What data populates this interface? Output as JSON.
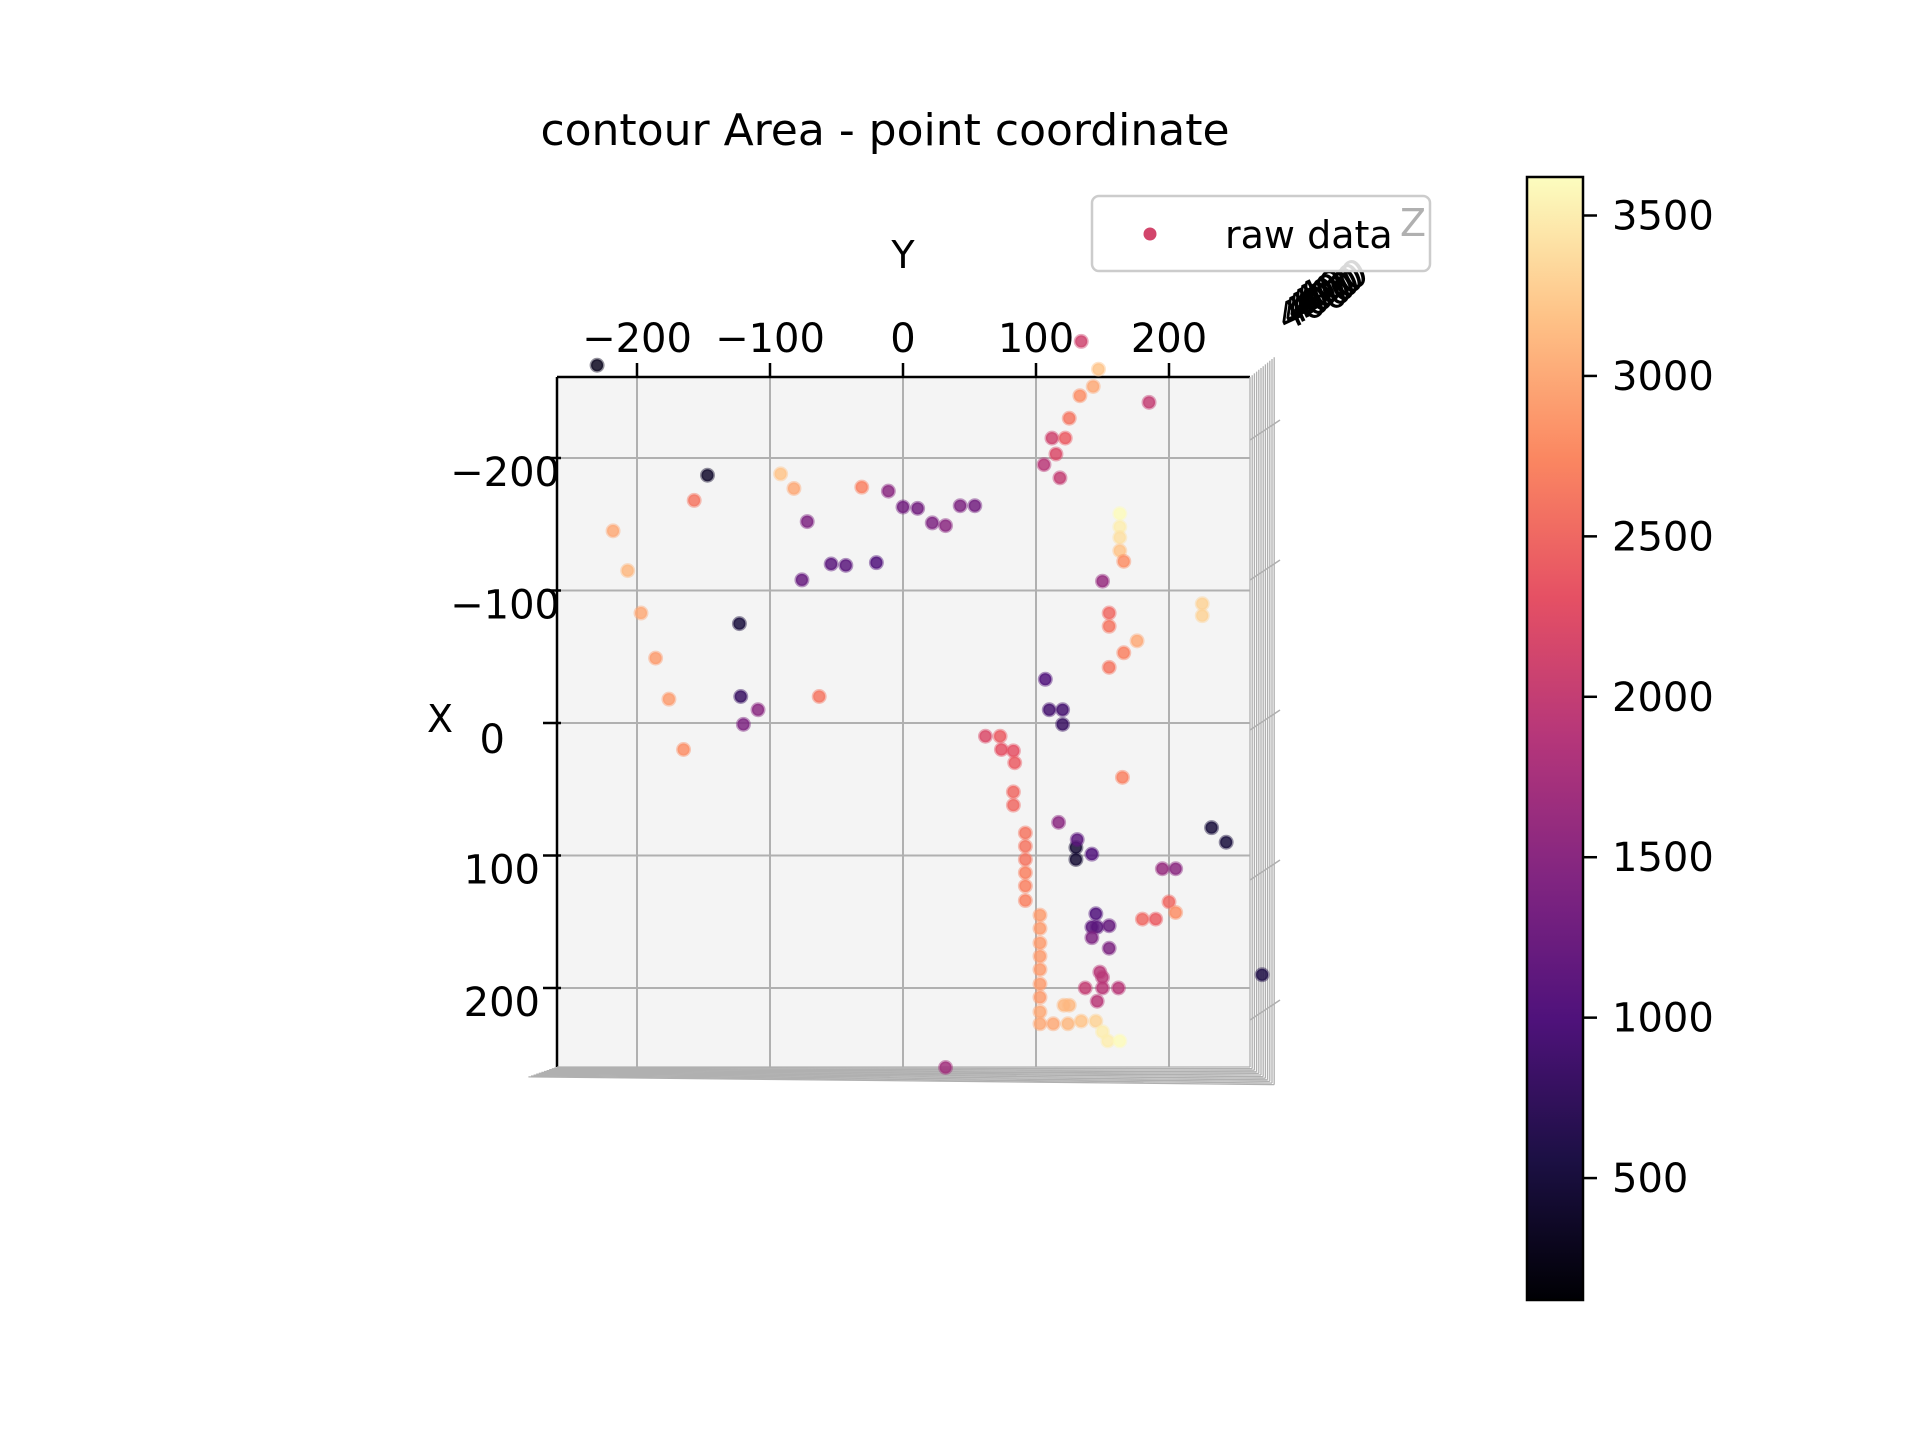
{
  "chart_data": {
    "type": "scatter",
    "title": "contour Area - point coordinate",
    "xlabel": "Y",
    "ylabel": "X",
    "zlabel": "Z",
    "view": "top-down 3D scatter",
    "grid": true,
    "legend": {
      "placement": "top-right",
      "entries": [
        "raw data"
      ]
    },
    "y_ticks_top": [
      -200,
      -100,
      0,
      100,
      200
    ],
    "x_ticks_left": [
      -200,
      -100,
      0,
      100,
      200
    ],
    "horizontal_range": [
      -260,
      260
    ],
    "vertical_range": [
      -260,
      260
    ],
    "z_tick_text": "400",
    "colorbar": {
      "colormap": "magma",
      "range": [
        120,
        3620
      ],
      "ticks": [
        500,
        1000,
        1500,
        2000,
        2500,
        3000,
        3500
      ]
    },
    "series": [
      {
        "name": "raw data",
        "points": [
          [
            -230,
            -270,
            300
          ],
          [
            -147,
            -187,
            400
          ],
          [
            -123,
            -75,
            500
          ],
          [
            130,
            94,
            450
          ],
          [
            130,
            103,
            450
          ],
          [
            232,
            79,
            480
          ],
          [
            243,
            90,
            500
          ],
          [
            270,
            190,
            600
          ],
          [
            134,
            -288,
            2100
          ],
          [
            185,
            -242,
            2000
          ],
          [
            -218,
            -145,
            3000
          ],
          [
            -207,
            -115,
            3100
          ],
          [
            -197,
            -83,
            3000
          ],
          [
            -186,
            -49,
            2900
          ],
          [
            -176,
            -18,
            2900
          ],
          [
            -165,
            20,
            2800
          ],
          [
            -157,
            -168,
            2600
          ],
          [
            -92,
            -188,
            3200
          ],
          [
            -82,
            -177,
            3000
          ],
          [
            -72,
            -152,
            1400
          ],
          [
            -76,
            -108,
            1200
          ],
          [
            -54,
            -120,
            1100
          ],
          [
            -43,
            -119,
            1100
          ],
          [
            -20,
            -121,
            1000
          ],
          [
            -31,
            -178,
            2700
          ],
          [
            -11,
            -175,
            1500
          ],
          [
            0,
            -163,
            1300
          ],
          [
            11,
            -162,
            1300
          ],
          [
            22,
            -151,
            1400
          ],
          [
            32,
            -149,
            1500
          ],
          [
            43,
            -164,
            1400
          ],
          [
            54,
            -164,
            1300
          ],
          [
            -63,
            -20,
            2600
          ],
          [
            -109,
            -10,
            1500
          ],
          [
            -120,
            1,
            1400
          ],
          [
            -122,
            -20,
            800
          ],
          [
            112,
            -215,
            2100
          ],
          [
            115,
            -203,
            2200
          ],
          [
            122,
            -215,
            2400
          ],
          [
            125,
            -230,
            2600
          ],
          [
            133,
            -247,
            2800
          ],
          [
            143,
            -254,
            3000
          ],
          [
            147,
            -267,
            3200
          ],
          [
            118,
            -185,
            2000
          ],
          [
            106,
            -195,
            1900
          ],
          [
            163,
            -158,
            3600
          ],
          [
            163,
            -148,
            3500
          ],
          [
            163,
            -140,
            3400
          ],
          [
            163,
            -130,
            3200
          ],
          [
            166,
            -122,
            2800
          ],
          [
            150,
            -107,
            1600
          ],
          [
            155,
            -83,
            2500
          ],
          [
            155,
            -73,
            2600
          ],
          [
            155,
            -42,
            2600
          ],
          [
            166,
            -53,
            2700
          ],
          [
            176,
            -62,
            3000
          ],
          [
            225,
            -90,
            3300
          ],
          [
            225,
            -81,
            3300
          ],
          [
            107,
            -33,
            1000
          ],
          [
            110,
            -10,
            900
          ],
          [
            120,
            -10,
            900
          ],
          [
            120,
            1,
            800
          ],
          [
            62,
            10,
            2200
          ],
          [
            73,
            10,
            2400
          ],
          [
            74,
            20,
            2300
          ],
          [
            83,
            21,
            2300
          ],
          [
            84,
            30,
            2400
          ],
          [
            83,
            52,
            2500
          ],
          [
            83,
            62,
            2500
          ],
          [
            92,
            83,
            2600
          ],
          [
            92,
            93,
            2600
          ],
          [
            92,
            103,
            2600
          ],
          [
            92,
            113,
            2700
          ],
          [
            92,
            123,
            2700
          ],
          [
            92,
            134,
            2700
          ],
          [
            103,
            145,
            2900
          ],
          [
            103,
            155,
            2900
          ],
          [
            103,
            166,
            2900
          ],
          [
            103,
            176,
            2900
          ],
          [
            103,
            186,
            2900
          ],
          [
            103,
            197,
            2900
          ],
          [
            103,
            207,
            2900
          ],
          [
            103,
            218,
            3000
          ],
          [
            103,
            227,
            3000
          ],
          [
            113,
            227,
            3000
          ],
          [
            124,
            227,
            3100
          ],
          [
            134,
            225,
            3200
          ],
          [
            145,
            225,
            3300
          ],
          [
            150,
            233,
            3500
          ],
          [
            154,
            240,
            3500
          ],
          [
            163,
            240,
            3600
          ],
          [
            121,
            213,
            3100
          ],
          [
            125,
            213,
            3100
          ],
          [
            145,
            144,
            1000
          ],
          [
            142,
            154,
            1100
          ],
          [
            146,
            154,
            1100
          ],
          [
            155,
            153,
            1200
          ],
          [
            142,
            162,
            1400
          ],
          [
            155,
            170,
            1400
          ],
          [
            148,
            188,
            1900
          ],
          [
            150,
            192,
            1900
          ],
          [
            150,
            200,
            1900
          ],
          [
            162,
            200,
            1900
          ],
          [
            137,
            200,
            2000
          ],
          [
            146,
            210,
            1900
          ],
          [
            117,
            75,
            1500
          ],
          [
            131,
            88,
            1100
          ],
          [
            142,
            99,
            1000
          ],
          [
            165,
            41,
            2700
          ],
          [
            180,
            148,
            2500
          ],
          [
            190,
            148,
            2400
          ],
          [
            195,
            110,
            1600
          ],
          [
            205,
            110,
            1500
          ],
          [
            200,
            135,
            2500
          ],
          [
            205,
            143,
            2800
          ],
          [
            32,
            260,
            1700
          ]
        ]
      }
    ]
  }
}
